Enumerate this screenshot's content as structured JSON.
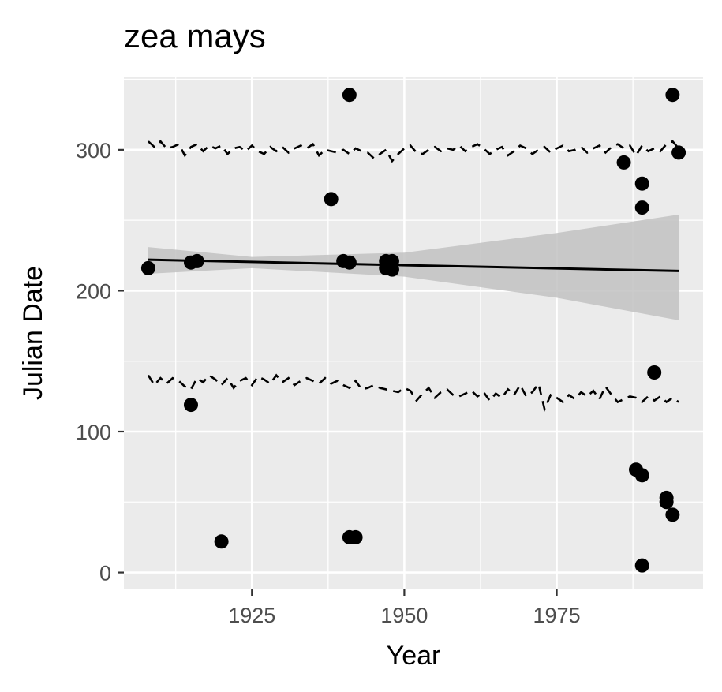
{
  "chart_data": {
    "type": "scatter",
    "title": "zea mays",
    "xlabel": "Year",
    "ylabel": "Julian Date",
    "xlim": [
      1904,
      1999
    ],
    "ylim": [
      -12,
      352
    ],
    "xticks": [
      1925,
      1950,
      1975
    ],
    "xtick_labels": [
      "1925",
      "1950",
      "1975"
    ],
    "yticks": [
      0,
      100,
      200,
      300
    ],
    "ytick_labels": [
      "0",
      "100",
      "200",
      "300"
    ],
    "grid": true,
    "legend": "none",
    "colors": {
      "panel": "#ebebeb",
      "grid": "#ffffff",
      "points": "#000000",
      "ribbon": "#c2c2c2"
    },
    "points": [
      [
        1908,
        216
      ],
      [
        1915,
        220
      ],
      [
        1915,
        119
      ],
      [
        1916,
        221
      ],
      [
        1920,
        22
      ],
      [
        1938,
        265
      ],
      [
        1940,
        221
      ],
      [
        1941,
        339
      ],
      [
        1941,
        25
      ],
      [
        1941,
        220
      ],
      [
        1942,
        25
      ],
      [
        1947,
        221
      ],
      [
        1947,
        216
      ],
      [
        1948,
        221
      ],
      [
        1948,
        215
      ],
      [
        1986,
        291
      ],
      [
        1988,
        73
      ],
      [
        1989,
        276
      ],
      [
        1989,
        259
      ],
      [
        1989,
        69
      ],
      [
        1989,
        5
      ],
      [
        1991,
        142
      ],
      [
        1993,
        53
      ],
      [
        1993,
        50
      ],
      [
        1994,
        41
      ],
      [
        1994,
        339
      ],
      [
        1995,
        298
      ]
    ],
    "trend_line": {
      "x": [
        1908,
        1995
      ],
      "y": [
        222,
        214
      ]
    },
    "confidence_band": {
      "x": [
        1908,
        1925,
        1950,
        1975,
        1995
      ],
      "lower": [
        212,
        216,
        210,
        195,
        179
      ],
      "upper": [
        231,
        224,
        227,
        241,
        254
      ]
    },
    "upper_dashed": {
      "x": [
        1908,
        1909,
        1910,
        1911,
        1912,
        1913,
        1914,
        1915,
        1916,
        1917,
        1918,
        1919,
        1920,
        1921,
        1922,
        1923,
        1924,
        1925,
        1926,
        1927,
        1928,
        1929,
        1930,
        1931,
        1932,
        1933,
        1934,
        1935,
        1936,
        1937,
        1938,
        1939,
        1940,
        1941,
        1942,
        1943,
        1944,
        1945,
        1946,
        1947,
        1948,
        1949,
        1950,
        1951,
        1952,
        1953,
        1954,
        1955,
        1956,
        1957,
        1958,
        1959,
        1960,
        1961,
        1962,
        1963,
        1964,
        1965,
        1966,
        1967,
        1968,
        1969,
        1970,
        1971,
        1972,
        1973,
        1974,
        1975,
        1976,
        1977,
        1978,
        1979,
        1980,
        1981,
        1982,
        1983,
        1984,
        1985,
        1986,
        1987,
        1988,
        1989,
        1990,
        1991,
        1992,
        1993,
        1994,
        1995
      ],
      "y": [
        306,
        302,
        306,
        301,
        302,
        304,
        296,
        302,
        304,
        299,
        303,
        301,
        303,
        297,
        301,
        302,
        299,
        303,
        299,
        297,
        302,
        299,
        302,
        298,
        301,
        303,
        301,
        304,
        296,
        300,
        299,
        298,
        300,
        297,
        301,
        299,
        298,
        294,
        297,
        300,
        292,
        297,
        301,
        303,
        298,
        297,
        300,
        302,
        299,
        301,
        300,
        303,
        299,
        302,
        304,
        301,
        297,
        300,
        302,
        296,
        299,
        303,
        301,
        297,
        300,
        302,
        298,
        301,
        303,
        299,
        300,
        302,
        298,
        301,
        303,
        298,
        302,
        304,
        301,
        303,
        296,
        303,
        299,
        301,
        299,
        304,
        306,
        301
      ]
    },
    "lower_dashed": {
      "x": [
        1908,
        1909,
        1910,
        1911,
        1912,
        1913,
        1914,
        1915,
        1916,
        1917,
        1918,
        1919,
        1920,
        1921,
        1922,
        1923,
        1924,
        1925,
        1926,
        1927,
        1928,
        1929,
        1930,
        1931,
        1932,
        1933,
        1934,
        1935,
        1936,
        1937,
        1938,
        1939,
        1940,
        1941,
        1942,
        1943,
        1944,
        1945,
        1946,
        1947,
        1948,
        1949,
        1950,
        1951,
        1952,
        1953,
        1954,
        1955,
        1956,
        1957,
        1958,
        1959,
        1960,
        1961,
        1962,
        1963,
        1964,
        1965,
        1966,
        1967,
        1968,
        1969,
        1970,
        1971,
        1972,
        1973,
        1974,
        1975,
        1976,
        1977,
        1978,
        1979,
        1980,
        1981,
        1982,
        1983,
        1984,
        1985,
        1986,
        1987,
        1988,
        1989,
        1990,
        1991,
        1992,
        1993,
        1994,
        1995
      ],
      "y": [
        140,
        133,
        138,
        134,
        138,
        136,
        132,
        130,
        138,
        135,
        140,
        137,
        133,
        138,
        131,
        136,
        138,
        133,
        139,
        137,
        134,
        140,
        135,
        138,
        133,
        136,
        138,
        136,
        134,
        138,
        134,
        136,
        133,
        131,
        136,
        130,
        131,
        133,
        131,
        130,
        129,
        128,
        131,
        129,
        122,
        127,
        131,
        124,
        128,
        130,
        126,
        125,
        127,
        129,
        125,
        128,
        122,
        127,
        124,
        130,
        126,
        133,
        125,
        128,
        134,
        116,
        126,
        124,
        121,
        126,
        123,
        128,
        125,
        129,
        123,
        132,
        126,
        121,
        123,
        125,
        124,
        121,
        125,
        122,
        125,
        121,
        124,
        121
      ]
    }
  }
}
